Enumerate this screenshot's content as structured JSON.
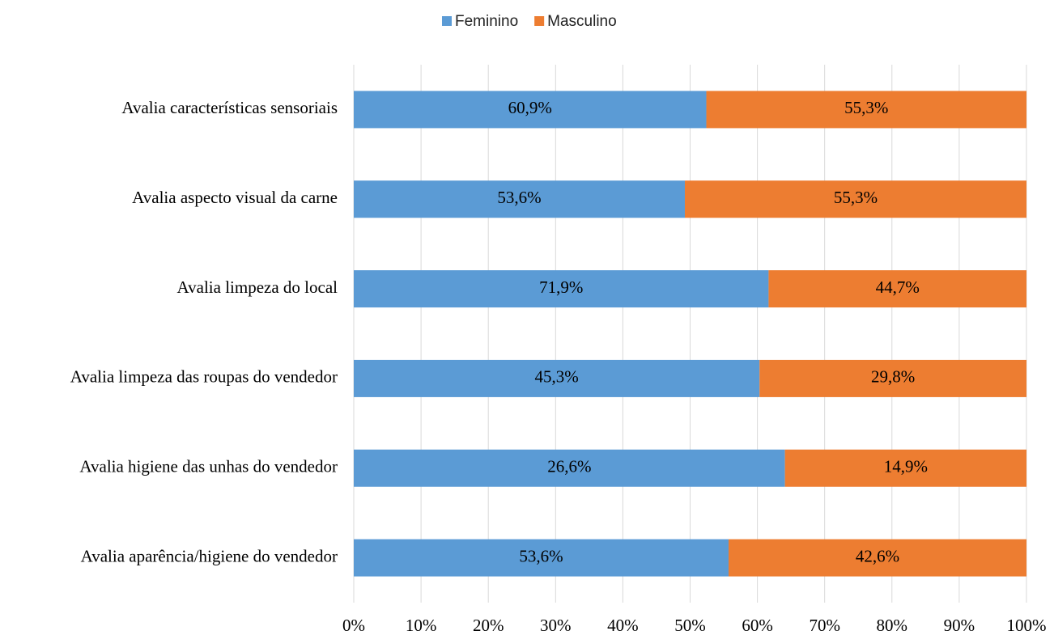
{
  "chart_data": {
    "type": "bar",
    "orientation": "horizontal",
    "stacked": "percent",
    "categories": [
      "Avalia características sensoriais",
      "Avalia aspecto visual da carne",
      "Avalia limpeza do local ",
      "Avalia limpeza das roupas do vendedor",
      "Avalia higiene das unhas do vendedor",
      "Avalia aparência/higiene do vendedor"
    ],
    "series": [
      {
        "name": "Feminino",
        "color": "#5b9bd5",
        "values": [
          60.9,
          53.6,
          71.9,
          45.3,
          26.6,
          53.6
        ],
        "value_labels": [
          "60,9%",
          "53,6%",
          "71,9%",
          "45,3%",
          "26,6%",
          "53,6%"
        ]
      },
      {
        "name": "Masculino",
        "color": "#ed7d31",
        "values": [
          55.3,
          55.3,
          44.7,
          29.8,
          14.9,
          42.6
        ],
        "value_labels": [
          "55,3%",
          "55,3%",
          "44,7%",
          "29,8%",
          "14,9%",
          "42,6%"
        ]
      }
    ],
    "xlim": [
      0,
      100
    ],
    "xticks": [
      {
        "value": 0,
        "label": "0%"
      },
      {
        "value": 10,
        "label": "10%"
      },
      {
        "value": 20,
        "label": "20%"
      },
      {
        "value": 30,
        "label": "30%"
      },
      {
        "value": 40,
        "label": "40%"
      },
      {
        "value": 50,
        "label": "50%"
      },
      {
        "value": 60,
        "label": "60%"
      },
      {
        "value": 70,
        "label": "70%"
      },
      {
        "value": 80,
        "label": "80%"
      },
      {
        "value": 90,
        "label": "90%"
      },
      {
        "value": 100,
        "label": "100%"
      }
    ],
    "grid": true,
    "legend": "top"
  }
}
